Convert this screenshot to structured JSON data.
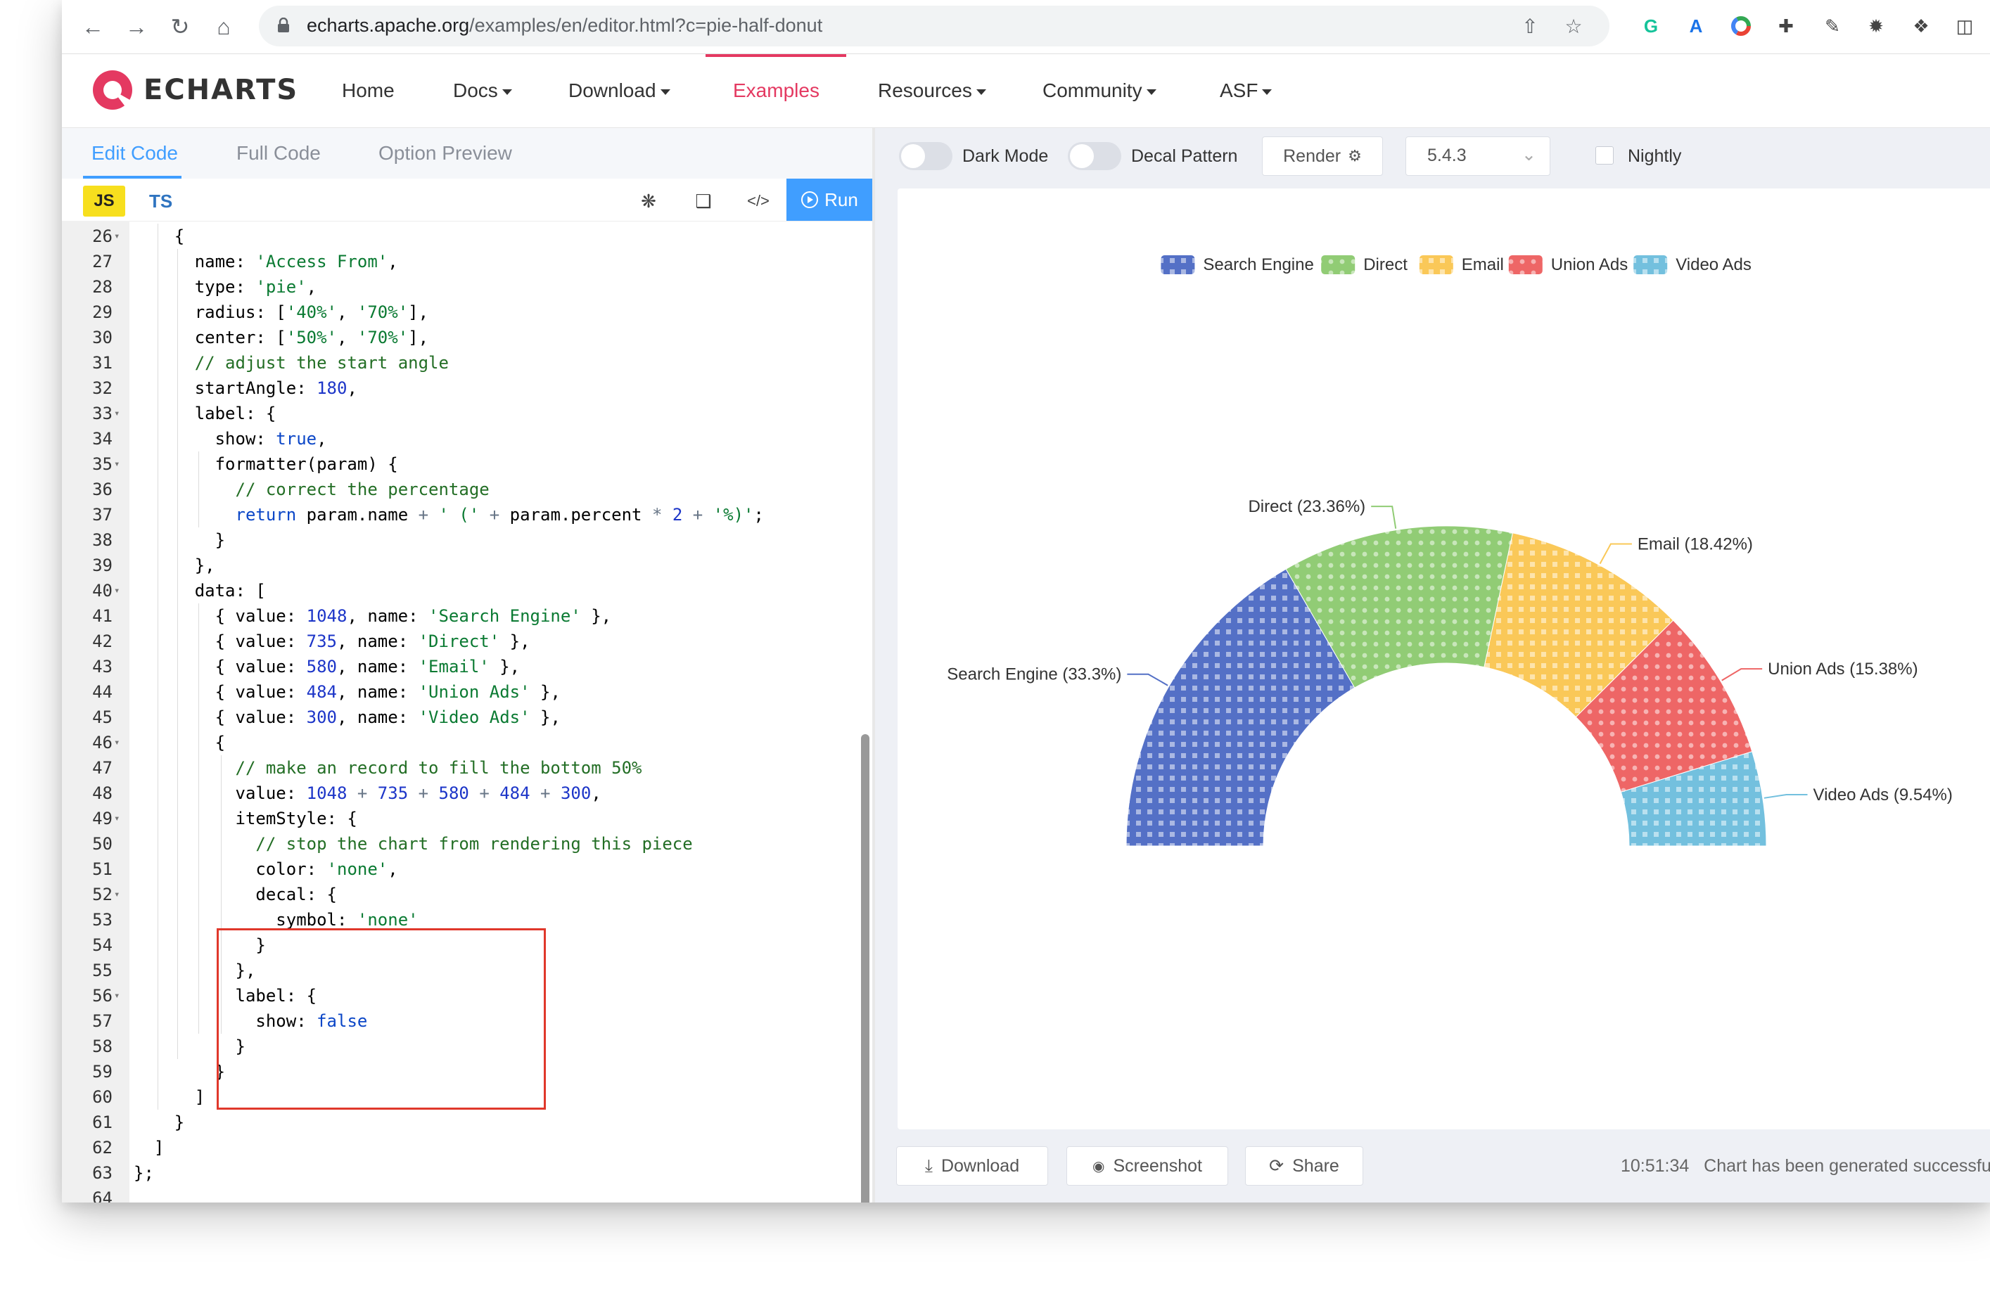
{
  "browser": {
    "url_host": "echarts.apache.org",
    "url_path": "/examples/en/editor.html?c=pie-half-donut"
  },
  "site": {
    "logo_text": "ECHARTS",
    "nav": [
      {
        "label": "Home",
        "dropdown": false
      },
      {
        "label": "Docs",
        "dropdown": true
      },
      {
        "label": "Download",
        "dropdown": true
      },
      {
        "label": "Examples",
        "dropdown": false,
        "active": true
      },
      {
        "label": "Resources",
        "dropdown": true
      },
      {
        "label": "Community",
        "dropdown": true
      },
      {
        "label": "ASF",
        "dropdown": true
      }
    ]
  },
  "editor": {
    "tabs": [
      "Edit Code",
      "Full Code",
      "Option Preview"
    ],
    "active_tab": "Edit Code",
    "lang_js": "JS",
    "lang_ts": "TS",
    "run_label": "Run",
    "lines": [
      {
        "n": 26,
        "fold": true
      },
      {
        "n": 27
      },
      {
        "n": 28
      },
      {
        "n": 29
      },
      {
        "n": 30
      },
      {
        "n": 31
      },
      {
        "n": 32
      },
      {
        "n": 33,
        "fold": true
      },
      {
        "n": 34
      },
      {
        "n": 35,
        "fold": true
      },
      {
        "n": 36
      },
      {
        "n": 37
      },
      {
        "n": 38
      },
      {
        "n": 39
      },
      {
        "n": 40,
        "fold": true
      },
      {
        "n": 41
      },
      {
        "n": 42
      },
      {
        "n": 43
      },
      {
        "n": 44
      },
      {
        "n": 45
      },
      {
        "n": 46,
        "fold": true
      },
      {
        "n": 47
      },
      {
        "n": 48
      },
      {
        "n": 49,
        "fold": true
      },
      {
        "n": 50
      },
      {
        "n": 51
      },
      {
        "n": 52,
        "fold": true
      },
      {
        "n": 53
      },
      {
        "n": 54
      },
      {
        "n": 55
      },
      {
        "n": 56,
        "fold": true
      },
      {
        "n": 57
      },
      {
        "n": 58
      },
      {
        "n": 59
      },
      {
        "n": 60
      },
      {
        "n": 61
      },
      {
        "n": 62
      },
      {
        "n": 63
      },
      {
        "n": 64
      }
    ],
    "code": [
      "    {",
      "      name: 'Access From',",
      "      type: 'pie',",
      "      radius: ['40%', '70%'],",
      "      center: ['50%', '70%'],",
      "      // adjust the start angle",
      "      startAngle: 180,",
      "      label: {",
      "        show: true,",
      "        formatter(param) {",
      "          // correct the percentage",
      "          return param.name + ' (' + param.percent * 2 + '%)';",
      "        }",
      "      },",
      "      data: [",
      "        { value: 1048, name: 'Search Engine' },",
      "        { value: 735, name: 'Direct' },",
      "        { value: 580, name: 'Email' },",
      "        { value: 484, name: 'Union Ads' },",
      "        { value: 300, name: 'Video Ads' },",
      "        {",
      "          // make an record to fill the bottom 50%",
      "          value: 1048 + 735 + 580 + 484 + 300,",
      "          itemStyle: {",
      "            // stop the chart from rendering this piece",
      "            color: 'none',",
      "            decal: {",
      "              symbol: 'none'",
      "            }",
      "          },",
      "          label: {",
      "            show: false",
      "          }",
      "        }",
      "      ]",
      "    }",
      "  ]",
      "};",
      ""
    ]
  },
  "preview": {
    "dark_mode_label": "Dark Mode",
    "decal_label": "Decal Pattern",
    "render_label": "Render",
    "version": "5.4.3",
    "nightly_label": "Nightly",
    "download_label": "Download",
    "screenshot_label": "Screenshot",
    "share_label": "Share",
    "status_time": "10:51:34",
    "status_text": "Chart has been generated successfully"
  },
  "chart_data": {
    "type": "pie",
    "variant": "half-donut",
    "legend_position": "top",
    "start_angle": 180,
    "decal": true,
    "series": [
      {
        "name": "Search Engine",
        "value": 1048,
        "label": "Search Engine (33.3%)",
        "color": "#5470c6"
      },
      {
        "name": "Direct",
        "value": 735,
        "label": "Direct (23.36%)",
        "color": "#91cc75"
      },
      {
        "name": "Email",
        "value": 580,
        "label": "Email (18.42%)",
        "color": "#fac858"
      },
      {
        "name": "Union Ads",
        "value": 484,
        "label": "Union Ads (15.38%)",
        "color": "#ee6666"
      },
      {
        "name": "Video Ads",
        "value": 300,
        "label": "Video Ads (9.54%)",
        "color": "#73c0de"
      }
    ]
  }
}
